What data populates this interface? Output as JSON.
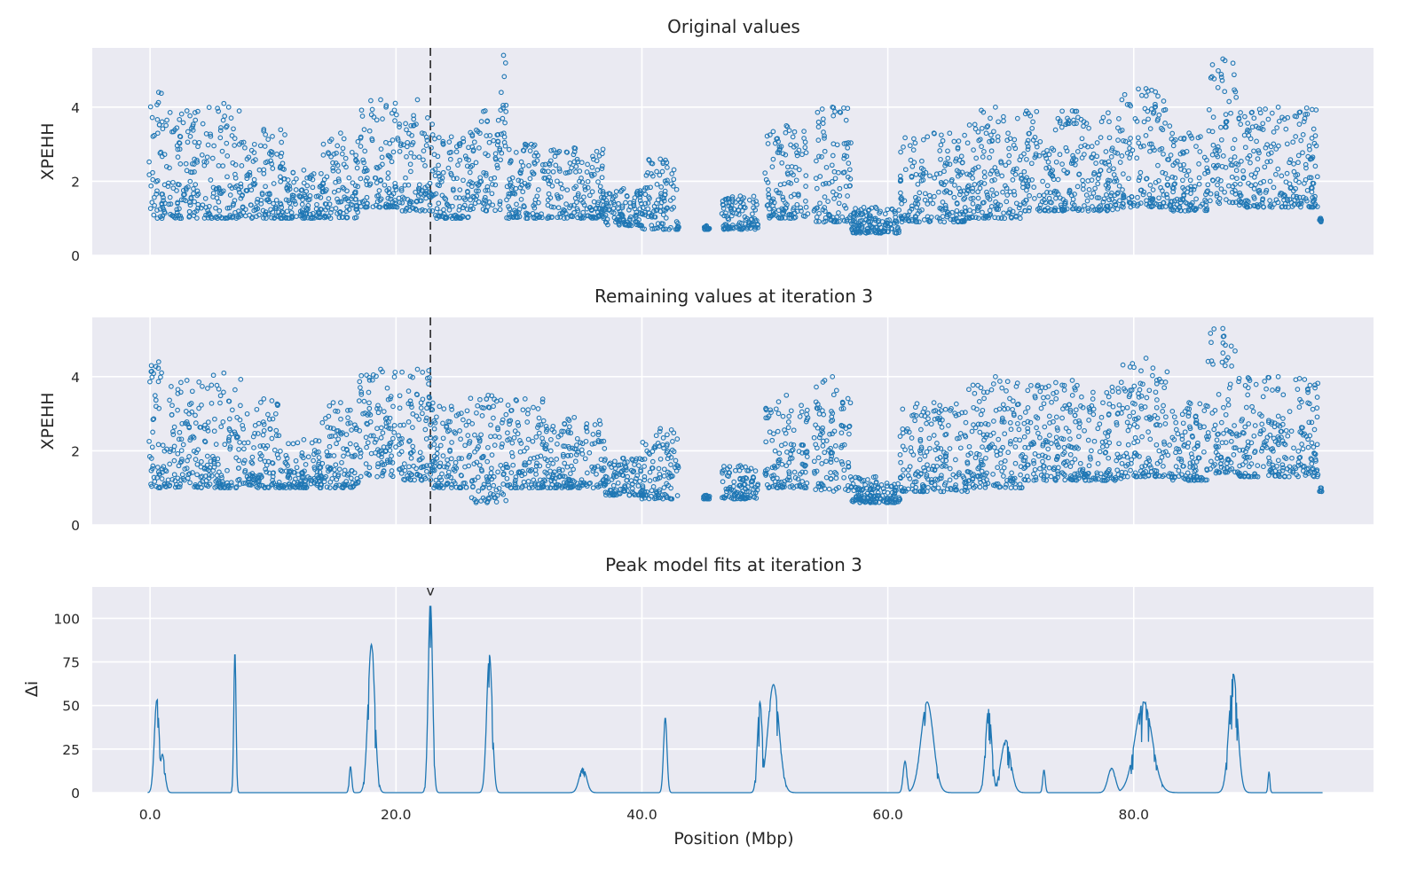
{
  "chart_data": [
    {
      "type": "scatter",
      "title": "Original values",
      "ylabel": "XPEHH",
      "xlabel": "",
      "xlim": [
        -4.7,
        99.5
      ],
      "ylim": [
        0,
        5.6
      ],
      "x_ticks": [
        0,
        20,
        40,
        60,
        80
      ],
      "y_ticks": [
        0,
        2,
        4
      ],
      "y_tick_labels": [
        "0",
        "2",
        "4"
      ],
      "grid": true,
      "marker": "open-circle",
      "color": "#1f77b4",
      "vline_x": 22.8,
      "vline_style": "dashed",
      "clusters": [
        {
          "x": [
            -0.1,
            1.5
          ],
          "y": [
            1.0,
            4.4
          ]
        },
        {
          "x": [
            1.5,
            4.5
          ],
          "y": [
            1.0,
            3.9
          ]
        },
        {
          "x": [
            4.5,
            7.5
          ],
          "y": [
            1.0,
            4.1
          ]
        },
        {
          "x": [
            7.5,
            11.0
          ],
          "y": [
            1.0,
            3.4
          ]
        },
        {
          "x": [
            11.0,
            14.0
          ],
          "y": [
            1.0,
            2.3
          ]
        },
        {
          "x": [
            14.0,
            17.0
          ],
          "y": [
            1.0,
            3.3
          ]
        },
        {
          "x": [
            17.0,
            20.5
          ],
          "y": [
            1.3,
            4.2
          ]
        },
        {
          "x": [
            20.5,
            23.0
          ],
          "y": [
            1.2,
            4.2
          ]
        },
        {
          "x": [
            23.0,
            26.0
          ],
          "y": [
            1.0,
            3.2
          ]
        },
        {
          "x": [
            26.0,
            28.5
          ],
          "y": [
            1.2,
            3.9
          ]
        },
        {
          "x": [
            28.5,
            29.0
          ],
          "y": [
            2.5,
            5.4
          ]
        },
        {
          "x": [
            29.0,
            32.0
          ],
          "y": [
            1.0,
            3.0
          ]
        },
        {
          "x": [
            32.0,
            37.0
          ],
          "y": [
            1.0,
            2.9
          ]
        },
        {
          "x": [
            37.0,
            40.0
          ],
          "y": [
            0.8,
            1.8
          ]
        },
        {
          "x": [
            40.0,
            43.0
          ],
          "y": [
            0.7,
            2.6
          ]
        },
        {
          "x": [
            45.0,
            45.5
          ],
          "y": [
            0.7,
            0.8
          ]
        },
        {
          "x": [
            46.5,
            49.5
          ],
          "y": [
            0.7,
            1.6
          ]
        },
        {
          "x": [
            50.0,
            53.5
          ],
          "y": [
            1.0,
            3.5
          ]
        },
        {
          "x": [
            54.0,
            57.0
          ],
          "y": [
            0.9,
            4.0
          ]
        },
        {
          "x": [
            57.0,
            61.0
          ],
          "y": [
            0.6,
            1.3
          ]
        },
        {
          "x": [
            61.0,
            66.5
          ],
          "y": [
            0.9,
            3.3
          ]
        },
        {
          "x": [
            66.5,
            71.0
          ],
          "y": [
            1.0,
            4.0
          ]
        },
        {
          "x": [
            71.0,
            79.0
          ],
          "y": [
            1.2,
            3.9
          ]
        },
        {
          "x": [
            79.0,
            83.0
          ],
          "y": [
            1.3,
            4.5
          ]
        },
        {
          "x": [
            83.0,
            86.0
          ],
          "y": [
            1.2,
            3.3
          ]
        },
        {
          "x": [
            86.0,
            88.5
          ],
          "y": [
            1.4,
            5.3
          ]
        },
        {
          "x": [
            88.5,
            95.0
          ],
          "y": [
            1.3,
            4.0
          ]
        },
        {
          "x": [
            95.1,
            95.3
          ],
          "y": [
            0.9,
            1.0
          ]
        }
      ]
    },
    {
      "type": "scatter",
      "title": "Remaining values at iteration 3",
      "ylabel": "XPEHH",
      "xlabel": "",
      "xlim": [
        -4.7,
        99.5
      ],
      "ylim": [
        0,
        5.6
      ],
      "x_ticks": [
        0,
        20,
        40,
        60,
        80
      ],
      "y_ticks": [
        0,
        2,
        4
      ],
      "y_tick_labels": [
        "0",
        "2",
        "4"
      ],
      "grid": true,
      "marker": "open-circle",
      "color": "#1f77b4",
      "vline_x": 22.8,
      "vline_style": "dashed",
      "clusters": [
        {
          "x": [
            -0.1,
            1.5
          ],
          "y": [
            1.0,
            4.4
          ]
        },
        {
          "x": [
            1.5,
            4.5
          ],
          "y": [
            1.0,
            3.9
          ]
        },
        {
          "x": [
            4.5,
            7.5
          ],
          "y": [
            1.0,
            4.1
          ]
        },
        {
          "x": [
            7.5,
            11.0
          ],
          "y": [
            1.0,
            3.4
          ]
        },
        {
          "x": [
            11.0,
            14.0
          ],
          "y": [
            1.0,
            2.3
          ]
        },
        {
          "x": [
            14.0,
            17.0
          ],
          "y": [
            1.0,
            3.3
          ]
        },
        {
          "x": [
            17.0,
            20.5
          ],
          "y": [
            1.3,
            4.2
          ]
        },
        {
          "x": [
            20.5,
            23.0
          ],
          "y": [
            1.2,
            4.2
          ]
        },
        {
          "x": [
            23.0,
            26.0
          ],
          "y": [
            1.0,
            3.2
          ]
        },
        {
          "x": [
            26.0,
            29.0
          ],
          "y": [
            0.6,
            3.5
          ]
        },
        {
          "x": [
            29.0,
            32.0
          ],
          "y": [
            1.0,
            3.4
          ]
        },
        {
          "x": [
            32.0,
            37.0
          ],
          "y": [
            1.0,
            2.9
          ]
        },
        {
          "x": [
            37.0,
            40.0
          ],
          "y": [
            0.8,
            1.8
          ]
        },
        {
          "x": [
            40.0,
            43.0
          ],
          "y": [
            0.7,
            2.6
          ]
        },
        {
          "x": [
            45.0,
            45.5
          ],
          "y": [
            0.7,
            0.8
          ]
        },
        {
          "x": [
            46.5,
            49.5
          ],
          "y": [
            0.7,
            1.6
          ]
        },
        {
          "x": [
            50.0,
            53.5
          ],
          "y": [
            1.0,
            3.5
          ]
        },
        {
          "x": [
            54.0,
            57.0
          ],
          "y": [
            0.9,
            4.0
          ]
        },
        {
          "x": [
            57.0,
            61.0
          ],
          "y": [
            0.6,
            1.3
          ]
        },
        {
          "x": [
            61.0,
            66.5
          ],
          "y": [
            0.9,
            3.3
          ]
        },
        {
          "x": [
            66.5,
            71.0
          ],
          "y": [
            1.0,
            4.0
          ]
        },
        {
          "x": [
            71.0,
            79.0
          ],
          "y": [
            1.2,
            3.9
          ]
        },
        {
          "x": [
            79.0,
            83.0
          ],
          "y": [
            1.3,
            4.5
          ]
        },
        {
          "x": [
            83.0,
            86.0
          ],
          "y": [
            1.2,
            3.3
          ]
        },
        {
          "x": [
            86.0,
            88.5
          ],
          "y": [
            1.4,
            5.3
          ]
        },
        {
          "x": [
            88.5,
            95.0
          ],
          "y": [
            1.3,
            4.0
          ]
        },
        {
          "x": [
            95.1,
            95.3
          ],
          "y": [
            0.9,
            1.0
          ]
        }
      ]
    },
    {
      "type": "line",
      "title": "Peak model fits at iteration 3",
      "ylabel": "Δi",
      "xlabel": "Position (Mbp)",
      "xlim": [
        -4.7,
        99.5
      ],
      "ylim": [
        0,
        118
      ],
      "x_ticks": [
        0,
        20,
        40,
        60,
        80
      ],
      "x_tick_labels": [
        "0.0",
        "20.0",
        "40.0",
        "60.0",
        "80.0"
      ],
      "y_ticks": [
        0,
        25,
        50,
        75,
        100
      ],
      "y_tick_labels": [
        "0",
        "25",
        "50",
        "75",
        "100"
      ],
      "grid": true,
      "color": "#1f77b4",
      "marker_label": "v",
      "marker_x": 22.8,
      "marker_y": 110,
      "peaks": [
        {
          "center": 0.55,
          "height": 53,
          "width": 0.4
        },
        {
          "center": 1.0,
          "height": 22,
          "width": 0.4
        },
        {
          "center": 6.9,
          "height": 81,
          "width": 0.18
        },
        {
          "center": 16.3,
          "height": 15,
          "width": 0.2
        },
        {
          "center": 18.0,
          "height": 85,
          "width": 0.55
        },
        {
          "center": 22.8,
          "height": 110,
          "width": 0.35
        },
        {
          "center": 27.6,
          "height": 79,
          "width": 0.45
        },
        {
          "center": 35.2,
          "height": 14,
          "width": 0.6
        },
        {
          "center": 41.9,
          "height": 43,
          "width": 0.28
        },
        {
          "center": 49.6,
          "height": 52,
          "width": 0.4
        },
        {
          "center": 50.7,
          "height": 62,
          "width": 0.9
        },
        {
          "center": 61.4,
          "height": 18,
          "width": 0.3
        },
        {
          "center": 63.2,
          "height": 52,
          "width": 1.0
        },
        {
          "center": 68.2,
          "height": 48,
          "width": 0.5
        },
        {
          "center": 69.6,
          "height": 30,
          "width": 0.8
        },
        {
          "center": 72.7,
          "height": 13,
          "width": 0.2
        },
        {
          "center": 78.2,
          "height": 14,
          "width": 0.6
        },
        {
          "center": 80.8,
          "height": 52,
          "width": 1.4
        },
        {
          "center": 88.1,
          "height": 68,
          "width": 0.7
        },
        {
          "center": 91.0,
          "height": 12,
          "width": 0.15
        }
      ]
    }
  ]
}
